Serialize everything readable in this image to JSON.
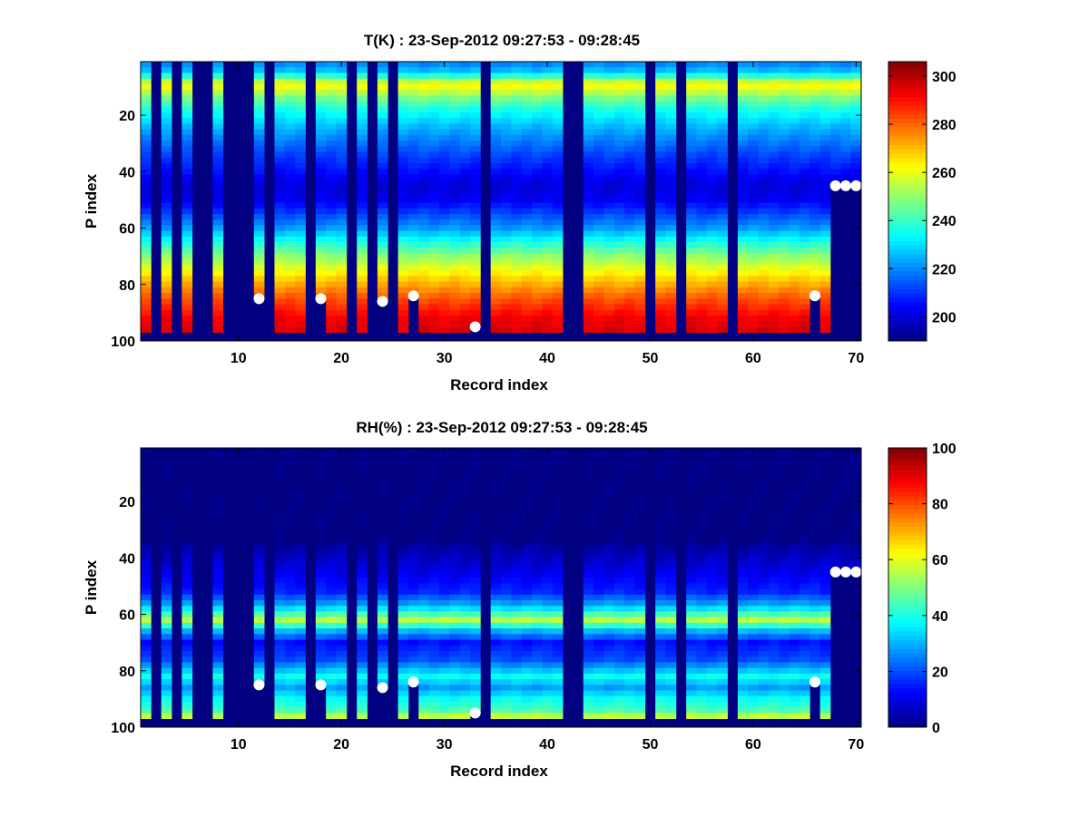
{
  "chart_data": [
    {
      "type": "heatmap",
      "title": "T(K) : 23-Sep-2012 09:27:53 - 09:28:45",
      "xlabel": "Record index",
      "ylabel": "P index",
      "xlim": [
        0.5,
        70.5
      ],
      "ylim": [
        1,
        100
      ],
      "y_reversed": true,
      "xticks": [
        10,
        20,
        30,
        40,
        50,
        60,
        70
      ],
      "yticks": [
        20,
        40,
        60,
        80,
        100
      ],
      "colormap": "jet",
      "colorbar": {
        "range": [
          190,
          306
        ],
        "ticks": [
          200,
          220,
          240,
          260,
          280,
          300
        ]
      },
      "missing_records": [
        2,
        4,
        6,
        7,
        9,
        10,
        11,
        13,
        17,
        21,
        23,
        25,
        34,
        42,
        43,
        50,
        53,
        58
      ],
      "profile_by_p_index": [
        {
          "p": 1,
          "value": 218
        },
        {
          "p": 5,
          "value": 228
        },
        {
          "p": 8,
          "value": 255
        },
        {
          "p": 10,
          "value": 262
        },
        {
          "p": 13,
          "value": 250
        },
        {
          "p": 18,
          "value": 236
        },
        {
          "p": 25,
          "value": 224
        },
        {
          "p": 35,
          "value": 211
        },
        {
          "p": 45,
          "value": 200
        },
        {
          "p": 50,
          "value": 203
        },
        {
          "p": 60,
          "value": 222
        },
        {
          "p": 70,
          "value": 250
        },
        {
          "p": 78,
          "value": 268
        },
        {
          "p": 85,
          "value": 282
        },
        {
          "p": 92,
          "value": 293
        },
        {
          "p": 97,
          "value": 296
        }
      ],
      "bottom_index_markers": [
        {
          "record": 12,
          "p": 85
        },
        {
          "record": 18,
          "p": 85
        },
        {
          "record": 24,
          "p": 86
        },
        {
          "record": 27,
          "p": 84
        },
        {
          "record": 33,
          "p": 95
        },
        {
          "record": 66,
          "p": 84
        },
        {
          "record": 68,
          "p": 45
        },
        {
          "record": 69,
          "p": 45
        },
        {
          "record": 70,
          "p": 45
        }
      ]
    },
    {
      "type": "heatmap",
      "title": "RH(%) : 23-Sep-2012 09:27:53 - 09:28:45",
      "xlabel": "Record index",
      "ylabel": "P index",
      "xlim": [
        0.5,
        70.5
      ],
      "ylim": [
        1,
        100
      ],
      "y_reversed": true,
      "xticks": [
        10,
        20,
        30,
        40,
        50,
        60,
        70
      ],
      "yticks": [
        20,
        40,
        60,
        80,
        100
      ],
      "colormap": "jet",
      "colorbar": {
        "range": [
          0,
          100
        ],
        "ticks": [
          0,
          20,
          40,
          60,
          80,
          100
        ]
      },
      "missing_records": [
        2,
        4,
        6,
        7,
        9,
        10,
        11,
        13,
        17,
        21,
        23,
        25,
        34,
        42,
        43,
        50,
        53,
        58
      ],
      "profile_by_p_index": [
        {
          "p": 1,
          "value": 0
        },
        {
          "p": 33,
          "value": 0
        },
        {
          "p": 38,
          "value": 5
        },
        {
          "p": 45,
          "value": 10
        },
        {
          "p": 52,
          "value": 16
        },
        {
          "p": 57,
          "value": 30
        },
        {
          "p": 62,
          "value": 55
        },
        {
          "p": 66,
          "value": 30
        },
        {
          "p": 70,
          "value": 14
        },
        {
          "p": 76,
          "value": 20
        },
        {
          "p": 82,
          "value": 38
        },
        {
          "p": 86,
          "value": 28
        },
        {
          "p": 90,
          "value": 38
        },
        {
          "p": 94,
          "value": 45
        },
        {
          "p": 97,
          "value": 62
        }
      ],
      "bottom_index_markers": [
        {
          "record": 12,
          "p": 85
        },
        {
          "record": 18,
          "p": 85
        },
        {
          "record": 24,
          "p": 86
        },
        {
          "record": 27,
          "p": 84
        },
        {
          "record": 33,
          "p": 95
        },
        {
          "record": 66,
          "p": 84
        },
        {
          "record": 68,
          "p": 45
        },
        {
          "record": 69,
          "p": 45
        },
        {
          "record": 70,
          "p": 45
        }
      ]
    }
  ]
}
